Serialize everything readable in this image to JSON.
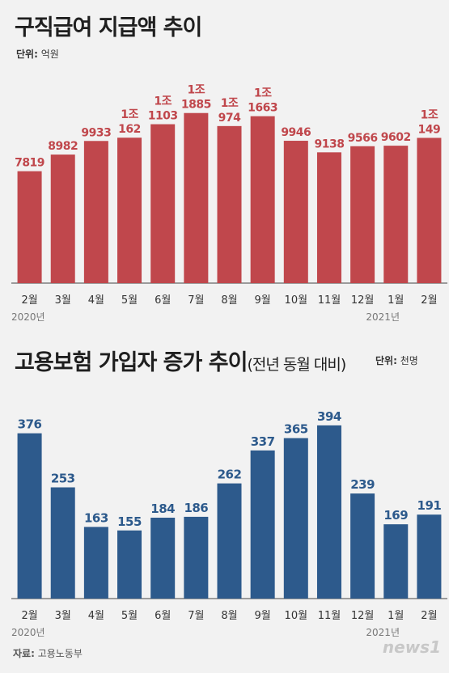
{
  "chart_data": [
    {
      "type": "bar",
      "title": "구직급여 지급액 추이",
      "unit_label": "단위:",
      "unit_value": "억원",
      "categories": [
        "2월",
        "3월",
        "4월",
        "5월",
        "6월",
        "7월",
        "8월",
        "9월",
        "10월",
        "11월",
        "12월",
        "1월",
        "2월"
      ],
      "year_labels": {
        "start": "2020년",
        "end": "2021년"
      },
      "values": [
        7819,
        8982,
        9933,
        10162,
        11103,
        11885,
        10974,
        11663,
        9946,
        9138,
        9566,
        9602,
        10149
      ],
      "data_labels": [
        {
          "top": "",
          "bottom": "7819"
        },
        {
          "top": "",
          "bottom": "8982"
        },
        {
          "top": "",
          "bottom": "9933"
        },
        {
          "top": "1조",
          "bottom": "162"
        },
        {
          "top": "1조",
          "bottom": "1103"
        },
        {
          "top": "1조",
          "bottom": "1885"
        },
        {
          "top": "1조",
          "bottom": "974"
        },
        {
          "top": "1조",
          "bottom": "1663"
        },
        {
          "top": "",
          "bottom": "9946"
        },
        {
          "top": "",
          "bottom": "9138"
        },
        {
          "top": "",
          "bottom": "9566"
        },
        {
          "top": "",
          "bottom": "9602"
        },
        {
          "top": "1조",
          "bottom": "149"
        }
      ],
      "bar_color": "#c0474c",
      "label_color": "#c0474c",
      "ylim": [
        0,
        13000
      ]
    },
    {
      "type": "bar",
      "title": "고용보험 가입자 증가 추이",
      "subtitle": "(전년 동월 대비)",
      "unit_label": "단위:",
      "unit_value": "천명",
      "categories": [
        "2월",
        "3월",
        "4월",
        "5월",
        "6월",
        "7월",
        "8월",
        "9월",
        "10월",
        "11월",
        "12월",
        "1월",
        "2월"
      ],
      "year_labels": {
        "start": "2020년",
        "end": "2021년"
      },
      "values": [
        376,
        253,
        163,
        155,
        184,
        186,
        262,
        337,
        365,
        394,
        239,
        169,
        191
      ],
      "data_labels": [
        {
          "top": "",
          "bottom": "376"
        },
        {
          "top": "",
          "bottom": "253"
        },
        {
          "top": "",
          "bottom": "163"
        },
        {
          "top": "",
          "bottom": "155"
        },
        {
          "top": "",
          "bottom": "184"
        },
        {
          "top": "",
          "bottom": "186"
        },
        {
          "top": "",
          "bottom": "262"
        },
        {
          "top": "",
          "bottom": "337"
        },
        {
          "top": "",
          "bottom": "365"
        },
        {
          "top": "",
          "bottom": "394"
        },
        {
          "top": "",
          "bottom": "239"
        },
        {
          "top": "",
          "bottom": "169"
        },
        {
          "top": "",
          "bottom": "191"
        }
      ],
      "bar_color": "#2d5a8c",
      "label_color": "#2d5a8c",
      "ylim": [
        0,
        460
      ]
    }
  ],
  "source": {
    "label": "자료:",
    "value": "고용노동부"
  },
  "logo": "news1"
}
